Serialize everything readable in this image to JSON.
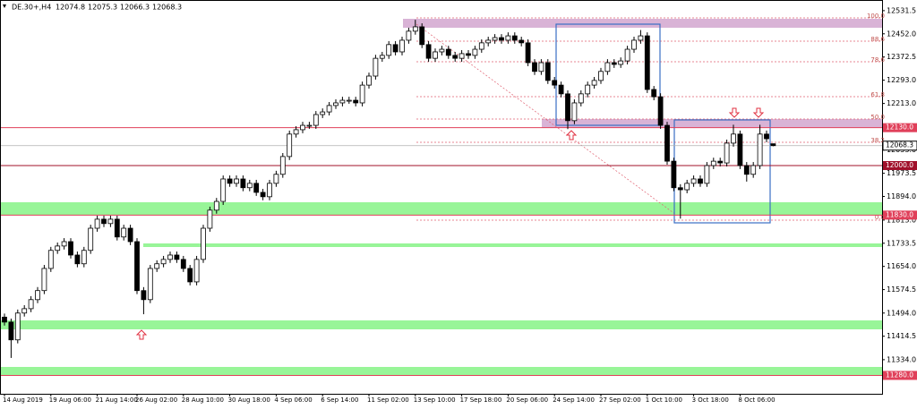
{
  "chart_data": {
    "type": "candlestick",
    "title": "DE.30+,H4",
    "header_values": [
      12074.8,
      12075.3,
      12066.3,
      12068.3
    ],
    "open": [
      11480,
      11463,
      11402,
      11494,
      11509,
      11540,
      11571,
      11647,
      11709,
      11724,
      11739,
      11693,
      11663,
      11709,
      11785,
      11816,
      11801,
      11816,
      11755,
      11785,
      11739,
      11571,
      11540,
      11647,
      11663,
      11678,
      11693,
      11678,
      11647,
      11601,
      11678,
      11785,
      11847,
      11877,
      11954,
      11939,
      11954,
      11924,
      11939,
      11908,
      11893,
      11939,
      11970,
      12031,
      12108,
      12123,
      12138,
      12138,
      12175,
      12184,
      12206,
      12215,
      12224,
      12224,
      12215,
      12276,
      12307,
      12368,
      12378,
      12415,
      12390,
      12430,
      12461,
      12476,
      12415,
      12368,
      12390,
      12399,
      12378,
      12368,
      12384,
      12378,
      12399,
      12421,
      12430,
      12439,
      12430,
      12445,
      12430,
      12421,
      12353,
      12323,
      12353,
      12292,
      12276,
      12246,
      12154,
      12215,
      12246,
      12276,
      12292,
      12323,
      12353,
      12347,
      12359,
      12399,
      12430,
      12445,
      12261,
      12236,
      12138,
      12015,
      11924,
      11917,
      11939,
      11954,
      11939,
      12000,
      12015,
      12009,
      12077,
      12108,
      12000,
      11970,
      12000,
      12108,
      12074.8
    ],
    "high": [
      11492,
      11475,
      11506,
      11521,
      11552,
      11583,
      11659,
      11721,
      11736,
      11751,
      11751,
      11705,
      11721,
      11797,
      11828,
      11828,
      11828,
      11828,
      11797,
      11797,
      11751,
      11583,
      11659,
      11675,
      11690,
      11705,
      11705,
      11690,
      11659,
      11690,
      11797,
      11859,
      11889,
      11966,
      11966,
      11966,
      11966,
      11951,
      11951,
      11920,
      11951,
      11982,
      12043,
      12120,
      12135,
      12150,
      12150,
      12187,
      12196,
      12218,
      12227,
      12236,
      12236,
      12236,
      12288,
      12319,
      12380,
      12390,
      12427,
      12427,
      12442,
      12473,
      12500,
      12488,
      12427,
      12402,
      12411,
      12411,
      12390,
      12396,
      12396,
      12411,
      12433,
      12442,
      12451,
      12451,
      12457,
      12457,
      12442,
      12433,
      12365,
      12365,
      12365,
      12304,
      12288,
      12258,
      12227,
      12258,
      12288,
      12304,
      12335,
      12365,
      12365,
      12371,
      12411,
      12442,
      12465,
      12457,
      12273,
      12248,
      12150,
      12027,
      11936,
      11951,
      11966,
      11966,
      12012,
      12027,
      12027,
      12089,
      12140,
      12120,
      12012,
      12012,
      12140,
      12120,
      12075.3
    ],
    "low": [
      11451,
      11340,
      11390,
      11482,
      11497,
      11528,
      11559,
      11635,
      11697,
      11712,
      11681,
      11651,
      11651,
      11697,
      11773,
      11789,
      11789,
      11743,
      11743,
      11727,
      11559,
      11490,
      11528,
      11635,
      11651,
      11666,
      11666,
      11635,
      11589,
      11589,
      11666,
      11773,
      11835,
      11865,
      11927,
      11927,
      11912,
      11912,
      11896,
      11881,
      11881,
      11927,
      11958,
      12019,
      12096,
      12111,
      12126,
      12126,
      12163,
      12172,
      12194,
      12203,
      12212,
      12203,
      12203,
      12264,
      12295,
      12356,
      12366,
      12378,
      12378,
      12418,
      12449,
      12403,
      12356,
      12356,
      12378,
      12366,
      12356,
      12356,
      12366,
      12366,
      12387,
      12409,
      12418,
      12418,
      12418,
      12418,
      12409,
      12341,
      12311,
      12311,
      12280,
      12264,
      12234,
      12125,
      12142,
      12203,
      12234,
      12264,
      12280,
      12311,
      12335,
      12335,
      12347,
      12387,
      12418,
      12249,
      12224,
      12126,
      12003,
      11912,
      11818,
      11905,
      11927,
      11927,
      11927,
      11988,
      11997,
      11997,
      12065,
      11988,
      11945,
      11958,
      11988,
      12080,
      12066.3
    ],
    "close": [
      11463,
      11402,
      11494,
      11509,
      11540,
      11571,
      11647,
      11709,
      11724,
      11739,
      11693,
      11663,
      11709,
      11785,
      11816,
      11801,
      11816,
      11755,
      11785,
      11739,
      11571,
      11540,
      11647,
      11663,
      11678,
      11693,
      11678,
      11647,
      11601,
      11678,
      11785,
      11847,
      11877,
      11954,
      11939,
      11954,
      11924,
      11939,
      11908,
      11893,
      11939,
      11970,
      12031,
      12108,
      12123,
      12138,
      12138,
      12175,
      12184,
      12206,
      12215,
      12224,
      12224,
      12215,
      12276,
      12307,
      12368,
      12378,
      12415,
      12390,
      12430,
      12461,
      12476,
      12415,
      12368,
      12390,
      12399,
      12378,
      12368,
      12384,
      12378,
      12399,
      12421,
      12430,
      12439,
      12430,
      12445,
      12430,
      12421,
      12353,
      12323,
      12353,
      12292,
      12276,
      12246,
      12154,
      12215,
      12246,
      12276,
      12292,
      12323,
      12353,
      12347,
      12359,
      12399,
      12430,
      12445,
      12261,
      12236,
      12138,
      12015,
      11924,
      11917,
      11939,
      11954,
      11939,
      12000,
      12015,
      12009,
      12077,
      12108,
      12000,
      11970,
      12000,
      12108,
      12092,
      12068.3
    ],
    "up_color": "#ffffff",
    "down_color": "#000000",
    "ylim": [
      11217,
      12568
    ],
    "yticks": [
      12531.5,
      {
        "value": 12452,
        "label": "12452.0"
      },
      12372.5,
      {
        "value": 12293,
        "label": "12293.0"
      },
      {
        "value": 12213,
        "label": "12213.0"
      },
      12133.5,
      {
        "value": 12053,
        "label": "12053.0"
      },
      11973.5,
      {
        "value": 11894,
        "label": "11894.0"
      },
      {
        "value": 11813,
        "label": "11813.0"
      },
      11733.5,
      {
        "value": 11654,
        "label": "11654.0"
      },
      11574.5,
      {
        "value": 11494,
        "label": "11494.0"
      },
      11414.5,
      {
        "value": 11334,
        "label": "11334.0"
      }
    ],
    "xticks": [
      {
        "value": 0,
        "label": "14 Aug 2019"
      },
      {
        "value": 7,
        "label": "19 Aug 06:00"
      },
      {
        "value": 14,
        "label": "21 Aug 14:00"
      },
      {
        "value": 20,
        "label": "26 Aug 02:00"
      },
      {
        "value": 27,
        "label": "28 Aug 10:00"
      },
      {
        "value": 34,
        "label": "30 Aug 18:00"
      },
      {
        "value": 41,
        "label": "4 Sep 06:00"
      },
      {
        "value": 48,
        "label": "6 Sep 14:00"
      },
      {
        "value": 55,
        "label": "11 Sep 02:00"
      },
      {
        "value": 62,
        "label": "13 Sep 10:00"
      },
      {
        "value": 69,
        "label": "17 Sep 18:00"
      },
      {
        "value": 76,
        "label": "20 Sep 06:00"
      },
      {
        "value": 83,
        "label": "24 Sep 14:00"
      },
      {
        "value": 90,
        "label": "27 Sep 02:00"
      },
      {
        "value": 97,
        "label": "1 Oct 10:00"
      },
      {
        "value": 104,
        "label": "3 Oct 18:00"
      },
      {
        "value": 111,
        "label": "8 Oct 06:00"
      }
    ],
    "levels": [
      {
        "value": 12130,
        "label": "12130.0",
        "color": "#e0405a"
      },
      {
        "value": 12000,
        "label": "12000.0",
        "color": "#a0102a"
      },
      {
        "value": 11830,
        "label": "11830.0",
        "color": "#e0405a"
      },
      {
        "value": 11280,
        "label": "11280.0",
        "color": "#e0405a"
      }
    ],
    "current_price": 12068.3,
    "fib_labels": [
      "100.0",
      "88.6",
      "78.6",
      "61.8",
      "50.0",
      "38.2",
      "0.0"
    ]
  }
}
